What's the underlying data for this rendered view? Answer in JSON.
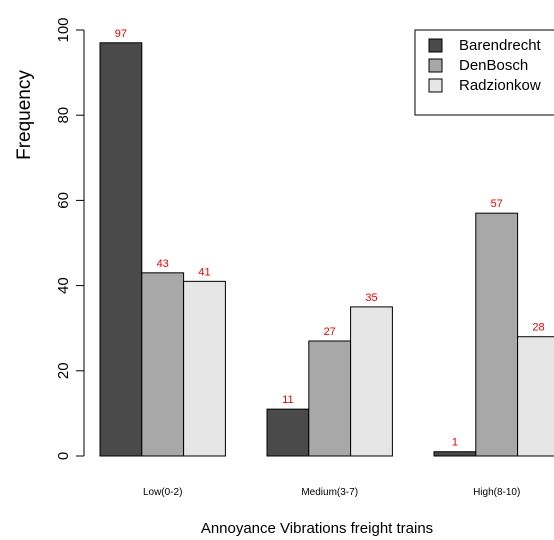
{
  "chart_data": {
    "type": "bar",
    "title": "",
    "xlabel": "Annoyance Vibrations freight trains",
    "ylabel": "Frequency",
    "categories": [
      "Low(0-2)",
      "Medium(3-7)",
      "High(8-10)"
    ],
    "series": [
      {
        "name": "Barendrecht",
        "values": [
          97,
          11,
          1
        ],
        "color": "#4a4a4a"
      },
      {
        "name": "DenBosch",
        "values": [
          43,
          27,
          57
        ],
        "color": "#a8a8a8"
      },
      {
        "name": "Radzionkow",
        "values": [
          41,
          35,
          28
        ],
        "color": "#e6e6e6"
      }
    ],
    "yticks": [
      0,
      20,
      40,
      60,
      80,
      100
    ],
    "ylim": [
      0,
      100
    ],
    "value_label_color": "#ee0000",
    "grid": false,
    "legend_position": "top-right"
  }
}
